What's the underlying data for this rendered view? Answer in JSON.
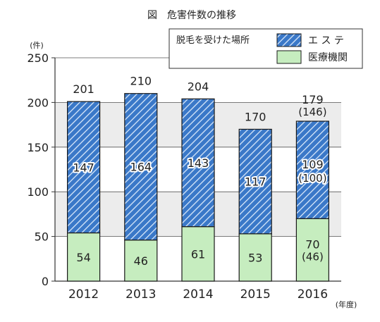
{
  "chart_data": {
    "type": "bar",
    "stacked": true,
    "title": "図　危害件数の推移",
    "ylabel": "(件)",
    "xlabel": "(年度)",
    "categories": [
      "2012",
      "2013",
      "2014",
      "2015",
      "2016"
    ],
    "ylim": [
      0,
      250
    ],
    "yticks": [
      0,
      50,
      100,
      150,
      200,
      250
    ],
    "grid": true,
    "legend_position": "top-right",
    "legend_title": "脱毛を受けた場所",
    "series": [
      {
        "name": "医療機関",
        "values": [
          54,
          46,
          61,
          53,
          70
        ],
        "labels": [
          "54",
          "46",
          "61",
          "53",
          "70"
        ],
        "sub_labels": [
          "",
          "",
          "",
          "",
          "(46)"
        ],
        "color": "#c6edbf"
      },
      {
        "name": "エ ス テ",
        "values": [
          147,
          164,
          143,
          117,
          109
        ],
        "labels": [
          "147",
          "164",
          "143",
          "117",
          "109"
        ],
        "sub_labels": [
          "",
          "",
          "",
          "",
          "(100)"
        ],
        "color": "#3a78c8"
      }
    ],
    "totals": [
      "201",
      "210",
      "204",
      "170",
      "179"
    ],
    "total_sub_labels": [
      "",
      "",
      "",
      "",
      "(146)"
    ]
  },
  "colors": {
    "band": "#ececec",
    "hatch_bg": "#3a78c8",
    "hatch_line": "#d9e8fa",
    "bar_border": "#1a1a1a"
  }
}
